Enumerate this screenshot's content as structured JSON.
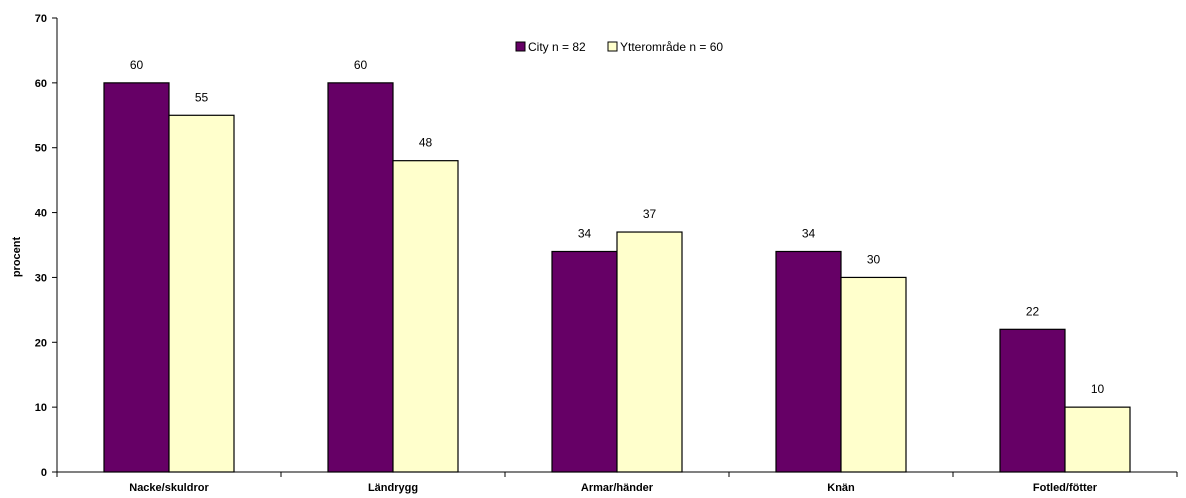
{
  "chart_data": {
    "type": "bar",
    "title": "",
    "xlabel": "",
    "ylabel": "procent",
    "ylim": [
      0,
      70
    ],
    "yticks": [
      0,
      10,
      20,
      30,
      40,
      50,
      60,
      70
    ],
    "grid": false,
    "legend_position": "top-center",
    "categories": [
      "Nacke/skuldror",
      "Ländrygg",
      "Armar/händer",
      "Knän",
      "Fotled/fötter"
    ],
    "series": [
      {
        "name": "City n = 82",
        "color": "#660066",
        "values": [
          60,
          60,
          34,
          34,
          22
        ]
      },
      {
        "name": "Ytterområde n = 60",
        "color": "#ffffcc",
        "values": [
          55,
          48,
          37,
          30,
          10
        ]
      }
    ]
  }
}
